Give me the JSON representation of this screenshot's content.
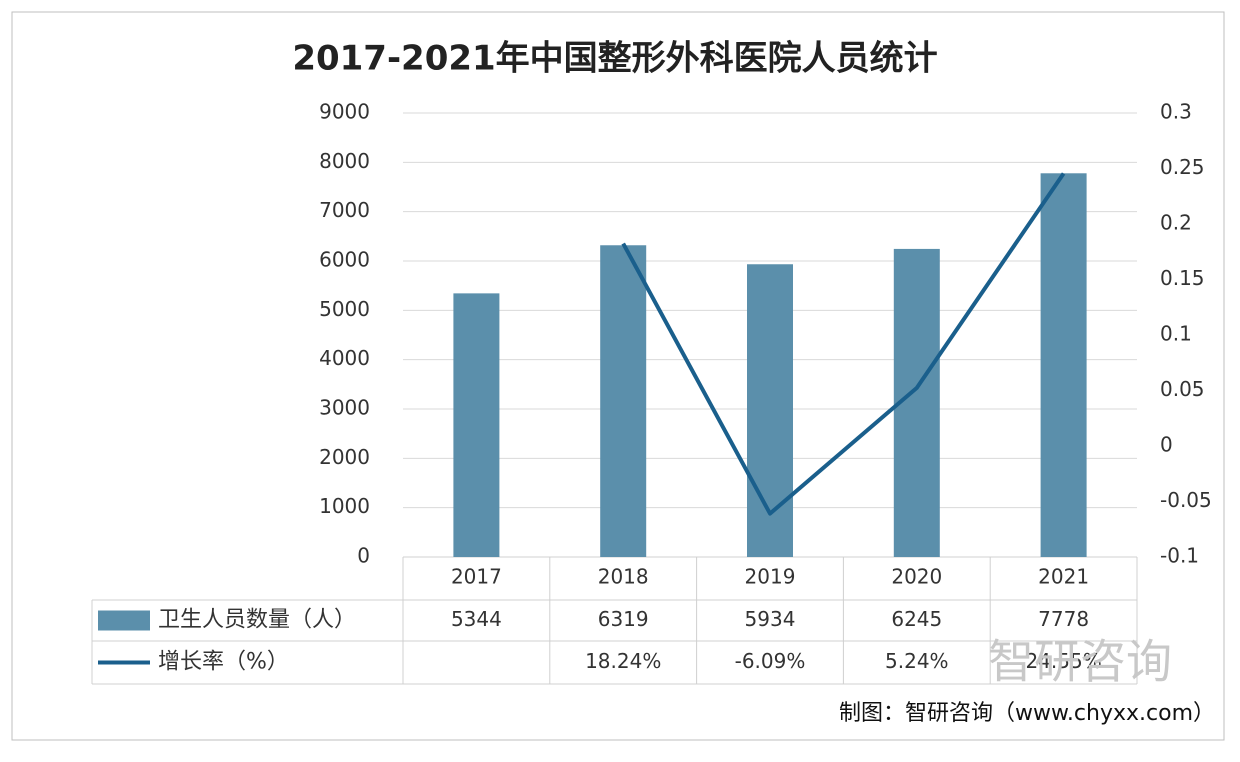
{
  "chart_data": {
    "type": "bar",
    "title": "2017-2021年中国整形外科医院人员统计",
    "categories": [
      "2017",
      "2018",
      "2019",
      "2020",
      "2021"
    ],
    "series": [
      {
        "name": "卫生人员数量（人）",
        "color": "#5b8fab",
        "type": "bar",
        "values": [
          5344,
          6319,
          5934,
          6245,
          7778
        ]
      },
      {
        "name": "增长率（%）",
        "color": "#1a5f8c",
        "type": "line",
        "axis": "y2",
        "values": [
          null,
          0.1824,
          -0.0609,
          0.0524,
          0.2455
        ],
        "value_labels": [
          null,
          "18.24%",
          "-6.09%",
          "5.24%",
          "24.55%"
        ]
      }
    ],
    "ylim": [
      0,
      9000
    ],
    "yticks": [
      0,
      1000,
      2000,
      3000,
      4000,
      5000,
      6000,
      7000,
      8000,
      9000
    ],
    "y2lim": [
      -0.1,
      0.3
    ],
    "y2ticks": [
      -0.1,
      -0.05,
      0,
      0.05,
      0.1,
      0.15,
      0.2,
      0.25,
      0.3
    ],
    "grid": true,
    "source": "制图：智研咨询（www.chyxx.com）",
    "watermark": "智研咨询"
  }
}
